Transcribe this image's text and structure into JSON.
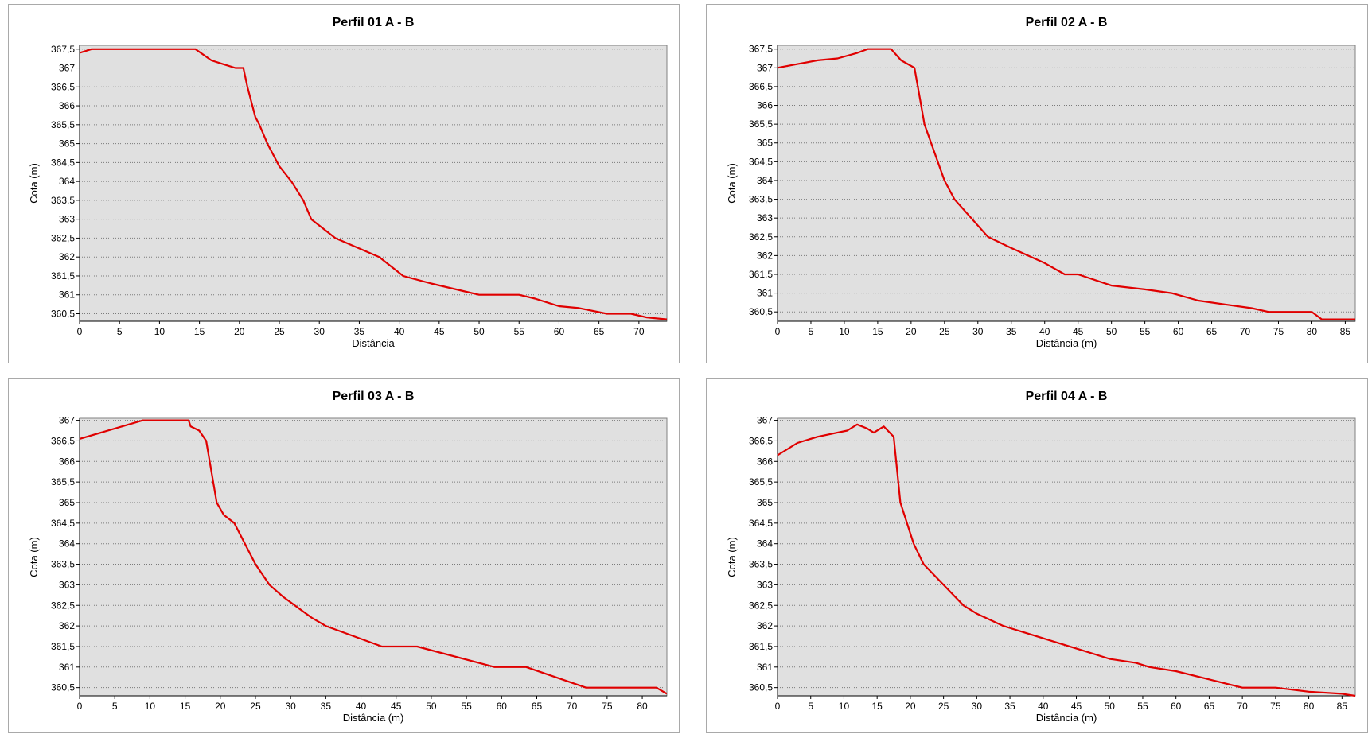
{
  "chart_data": [
    {
      "type": "line",
      "title": "Perfil 01  A - B",
      "xlabel": "Distância",
      "ylabel": "Cota (m)",
      "xlim": [
        0,
        73.5
      ],
      "ylim": [
        360.3,
        367.6
      ],
      "x_ticks": [
        0,
        5,
        10,
        15,
        20,
        25,
        30,
        35,
        40,
        45,
        50,
        55,
        60,
        65,
        70
      ],
      "y_ticks": [
        367.5,
        367,
        366.5,
        366,
        365.5,
        365,
        364.5,
        364,
        363.5,
        363,
        362.5,
        362,
        361.5,
        361,
        360.5
      ],
      "y_tick_labels": [
        "367,5",
        "367",
        "366,5",
        "366",
        "365,5",
        "365",
        "364,5",
        "364",
        "363,5",
        "363",
        "362,5",
        "362",
        "361,5",
        "361",
        "360,5"
      ],
      "grid": true,
      "color": "#e00000",
      "series": [
        {
          "x": [
            0,
            1.5,
            14.5,
            16.5,
            18,
            19.5,
            20.5,
            21,
            22,
            22.5,
            23.5,
            25,
            26.5,
            28,
            29,
            32,
            37.5,
            40.5,
            44,
            48,
            50,
            55,
            57,
            60,
            62.5,
            66,
            69,
            71,
            73.5
          ],
          "y": [
            367.4,
            367.5,
            367.5,
            367.2,
            367.1,
            367.0,
            367.0,
            366.5,
            365.7,
            365.5,
            365.0,
            364.4,
            364.0,
            363.5,
            363.0,
            362.5,
            362.0,
            361.5,
            361.3,
            361.1,
            361.0,
            361.0,
            360.9,
            360.7,
            360.65,
            360.5,
            360.5,
            360.4,
            360.35
          ]
        }
      ]
    },
    {
      "type": "line",
      "title": "Perfil 02  A - B",
      "xlabel": "Distância (m)",
      "ylabel": "Cota (m)",
      "xlim": [
        0,
        86.5
      ],
      "ylim": [
        360.25,
        367.6
      ],
      "x_ticks": [
        0,
        5,
        10,
        15,
        20,
        25,
        30,
        35,
        40,
        45,
        50,
        55,
        60,
        65,
        70,
        75,
        80,
        85
      ],
      "y_ticks": [
        367.5,
        367,
        366.5,
        366,
        365.5,
        365,
        364.5,
        364,
        363.5,
        363,
        362.5,
        362,
        361.5,
        361,
        360.5
      ],
      "y_tick_labels": [
        "367,5",
        "367",
        "366,5",
        "366",
        "365,5",
        "365",
        "364,5",
        "364",
        "363,5",
        "363",
        "362,5",
        "362",
        "361,5",
        "361",
        "360,5"
      ],
      "grid": true,
      "color": "#e00000",
      "series": [
        {
          "x": [
            0,
            3,
            6,
            9,
            12,
            13.5,
            17,
            18.5,
            20.5,
            21.5,
            22,
            24,
            25,
            26.5,
            29,
            31.5,
            35,
            40,
            43,
            45,
            50,
            55,
            59,
            63,
            67,
            71,
            73.5,
            77,
            80,
            81.5,
            84,
            86.5
          ],
          "y": [
            367.0,
            367.1,
            367.2,
            367.25,
            367.4,
            367.5,
            367.5,
            367.2,
            367.0,
            366.0,
            365.5,
            364.5,
            364.0,
            363.5,
            363.0,
            362.5,
            362.2,
            361.8,
            361.5,
            361.5,
            361.2,
            361.1,
            361.0,
            360.8,
            360.7,
            360.6,
            360.5,
            360.5,
            360.5,
            360.3,
            360.3,
            360.3
          ]
        }
      ]
    },
    {
      "type": "line",
      "title": "Perfil 03  A - B",
      "xlabel": "Distância (m)",
      "ylabel": "Cota (m)",
      "xlim": [
        0,
        83.5
      ],
      "ylim": [
        360.3,
        367.05
      ],
      "x_ticks": [
        0,
        5,
        10,
        15,
        20,
        25,
        30,
        35,
        40,
        45,
        50,
        55,
        60,
        65,
        70,
        75,
        80
      ],
      "y_ticks": [
        367,
        366.5,
        366,
        365.5,
        365,
        364.5,
        364,
        363.5,
        363,
        362.5,
        362,
        361.5,
        361,
        360.5
      ],
      "y_tick_labels": [
        "367",
        "366,5",
        "366",
        "365,5",
        "365",
        "364,5",
        "364",
        "363,5",
        "363",
        "362,5",
        "362",
        "361,5",
        "361",
        "360,5"
      ],
      "grid": true,
      "color": "#e00000",
      "series": [
        {
          "x": [
            0,
            9,
            15.5,
            15.8,
            17,
            18,
            18.5,
            19,
            19.5,
            20.5,
            22,
            25,
            27,
            29,
            33,
            35,
            43,
            48,
            59,
            63.5,
            72,
            82,
            83.5
          ],
          "y": [
            366.55,
            367.0,
            367.0,
            366.85,
            366.75,
            366.5,
            366.0,
            365.5,
            365.0,
            364.7,
            364.5,
            363.5,
            363.0,
            362.7,
            362.2,
            362.0,
            361.5,
            361.5,
            361.0,
            361.0,
            360.5,
            360.5,
            360.35
          ]
        }
      ]
    },
    {
      "type": "line",
      "title": "Perfil 04  A - B",
      "xlabel": "Distância (m)",
      "ylabel": "Cota (m)",
      "xlim": [
        0,
        87
      ],
      "ylim": [
        360.3,
        367.05
      ],
      "x_ticks": [
        0,
        5,
        10,
        15,
        20,
        25,
        30,
        35,
        40,
        45,
        50,
        55,
        60,
        65,
        70,
        75,
        80,
        85
      ],
      "y_ticks": [
        367,
        366.5,
        366,
        365.5,
        365,
        364.5,
        364,
        363.5,
        363,
        362.5,
        362,
        361.5,
        361,
        360.5
      ],
      "y_tick_labels": [
        "367",
        "366,5",
        "366",
        "365,5",
        "365",
        "364,5",
        "364",
        "363,5",
        "363",
        "362,5",
        "362",
        "361,5",
        "361",
        "360,5"
      ],
      "grid": true,
      "color": "#e00000",
      "series": [
        {
          "x": [
            0,
            3,
            6,
            9,
            10.5,
            12,
            13.5,
            14.5,
            16,
            17.5,
            18.5,
            20.5,
            22,
            25,
            28,
            30,
            34,
            38,
            42,
            46,
            50,
            54,
            56,
            60,
            65,
            70,
            75,
            80,
            85,
            87
          ],
          "y": [
            366.15,
            366.45,
            366.6,
            366.7,
            366.75,
            366.9,
            366.8,
            366.7,
            366.85,
            366.6,
            365.0,
            364.0,
            363.5,
            363.0,
            362.5,
            362.3,
            362.0,
            361.8,
            361.6,
            361.4,
            361.2,
            361.1,
            361.0,
            360.9,
            360.7,
            360.5,
            360.5,
            360.4,
            360.35,
            360.3
          ]
        }
      ]
    }
  ]
}
